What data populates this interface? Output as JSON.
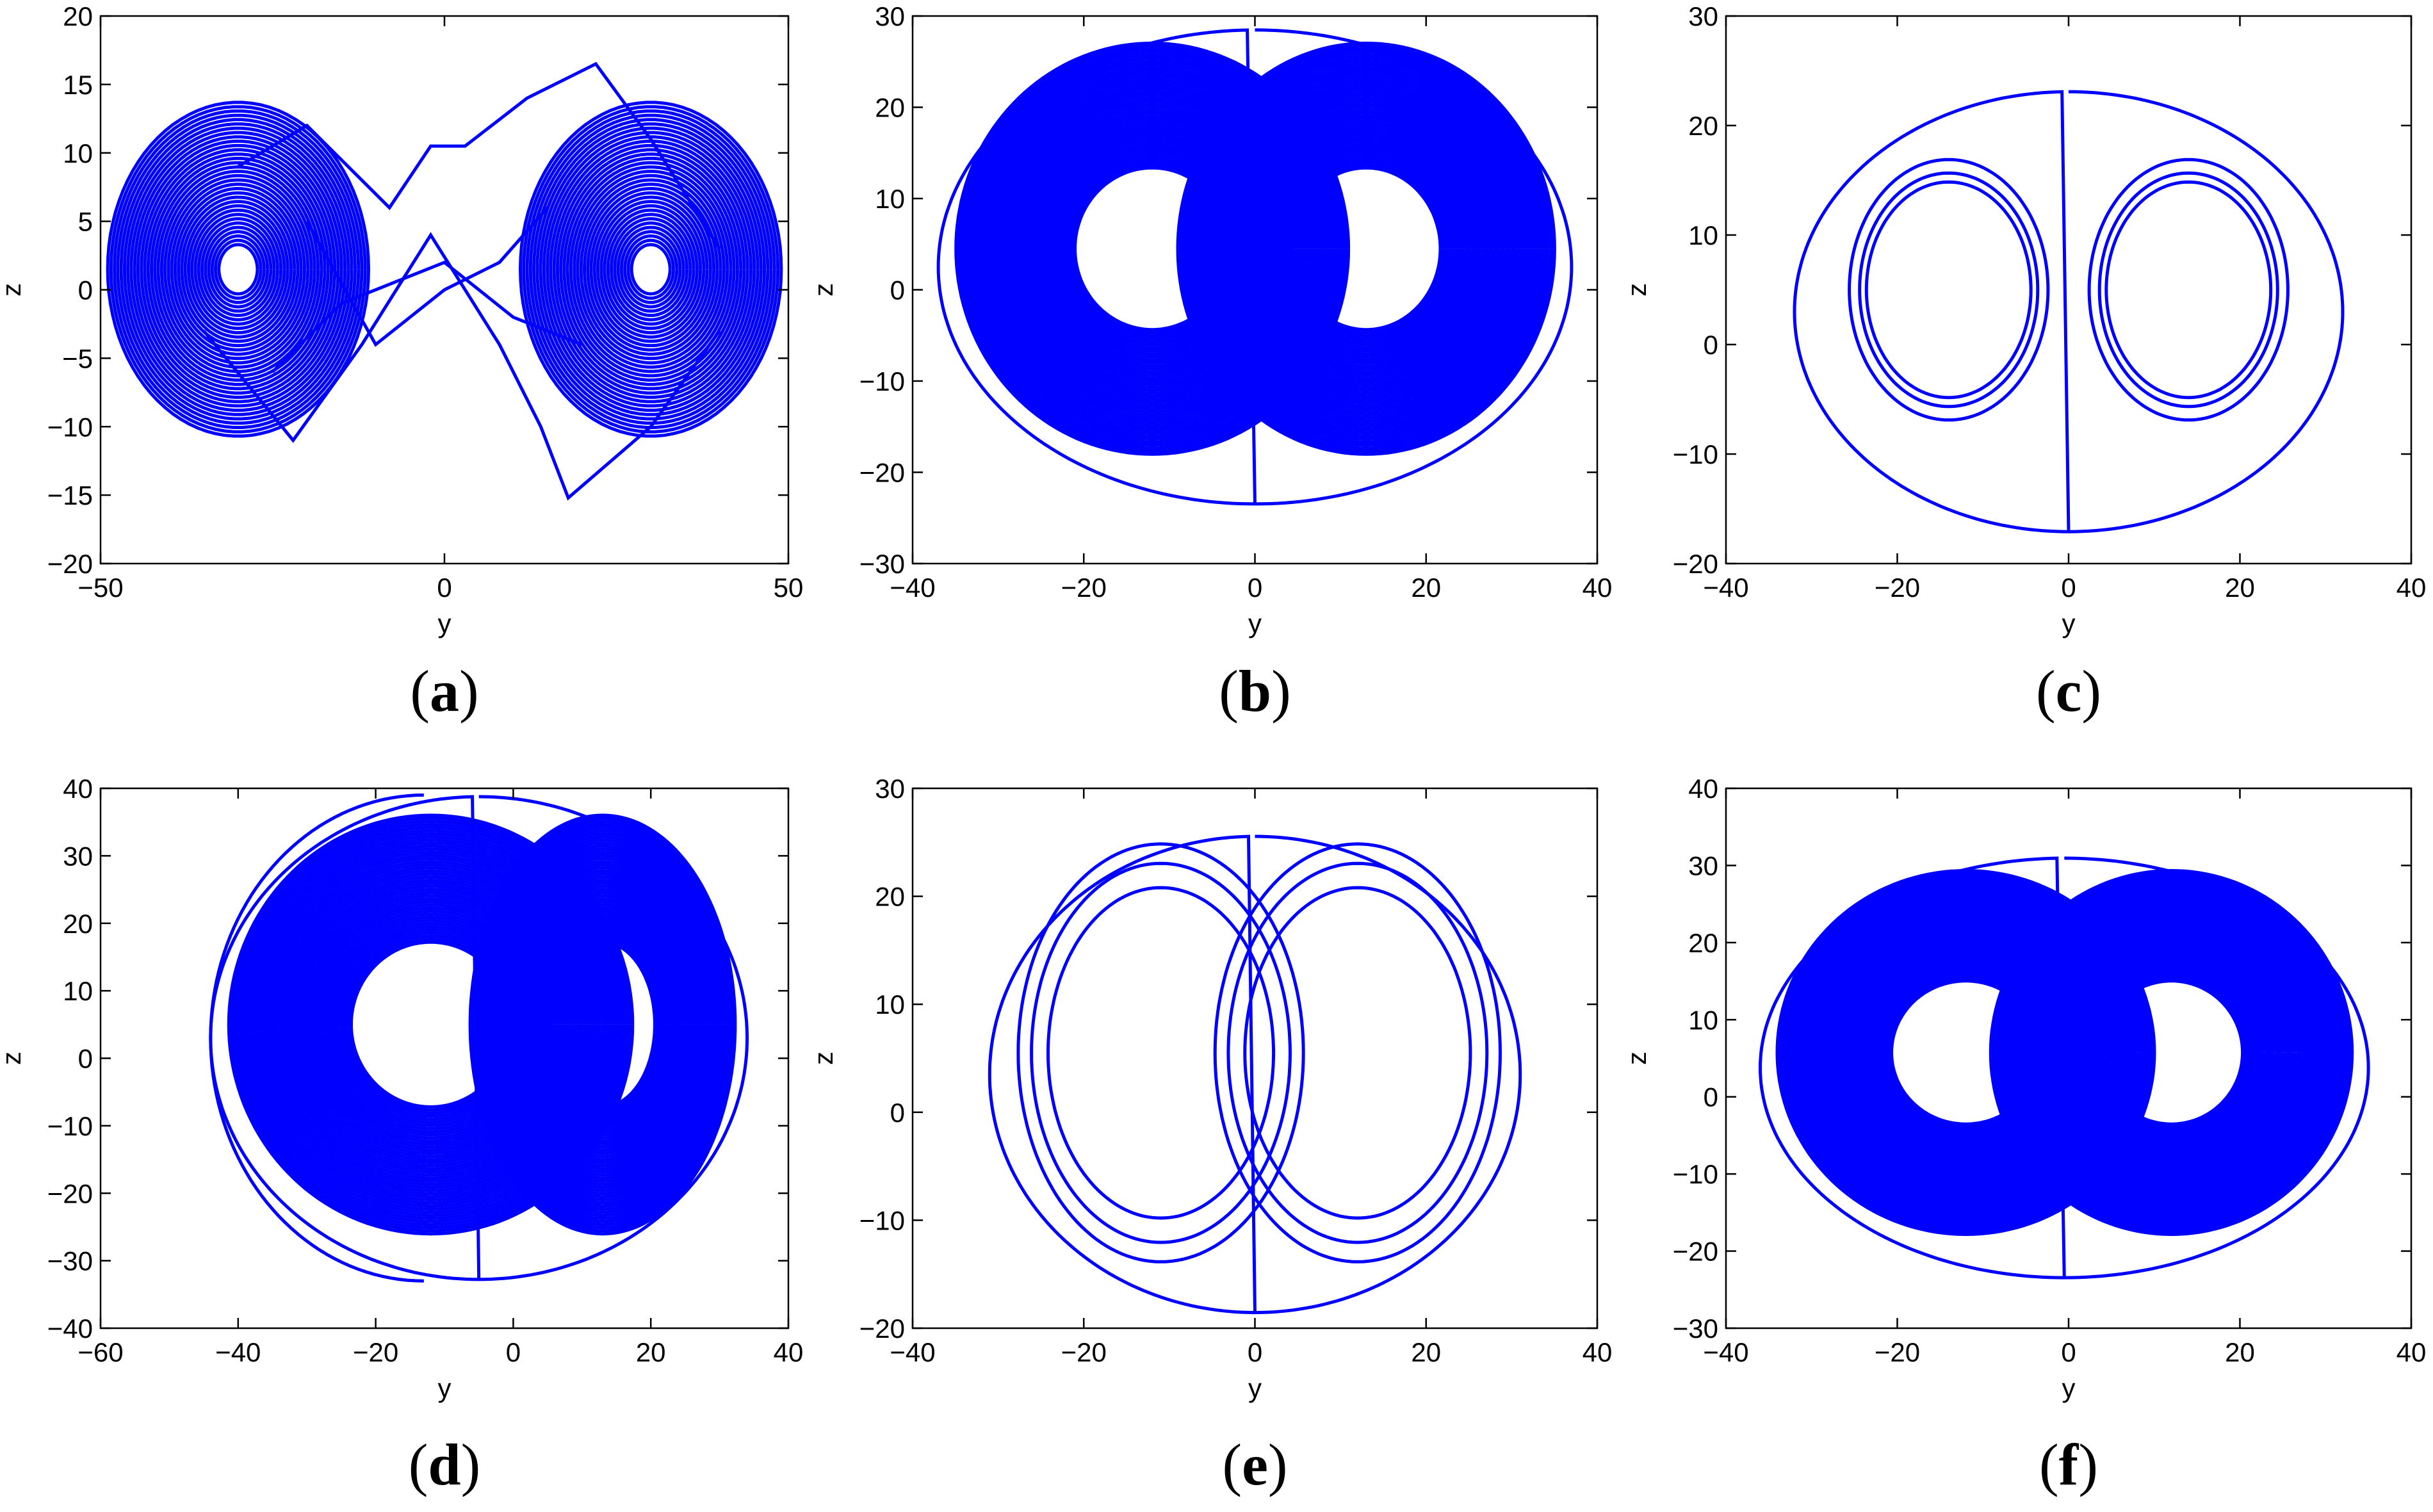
{
  "chart_data": [
    {
      "id": "a",
      "panel_label": "a",
      "type": "line",
      "xlabel": "y",
      "ylabel": "z",
      "xlim": [
        -50,
        50
      ],
      "ylim": [
        -20,
        20
      ],
      "xticks": [
        -50,
        0,
        50
      ],
      "yticks": [
        -20,
        -15,
        -10,
        -5,
        0,
        5,
        10,
        15,
        20
      ],
      "xtick_labels": [
        "−50",
        "0",
        "50"
      ],
      "ytick_labels": [
        "−20",
        "−15",
        "−10",
        "−5",
        "0",
        "5",
        "10",
        "15",
        "20"
      ],
      "line_color": "#0000ff",
      "series": [
        {
          "pattern": "dense-two-scroll",
          "attractor": "chaotic double-scroll",
          "lobe_centers_x": [
            -30,
            30
          ],
          "x_extent": [
            -45,
            45
          ],
          "y_extent": [
            -15,
            17
          ]
        }
      ]
    },
    {
      "id": "b",
      "panel_label": "b",
      "type": "line",
      "xlabel": "y",
      "ylabel": "z",
      "xlim": [
        -40,
        40
      ],
      "ylim": [
        -30,
        30
      ],
      "xticks": [
        -40,
        -20,
        0,
        20,
        40
      ],
      "yticks": [
        -30,
        -20,
        -10,
        0,
        10,
        20,
        30
      ],
      "xtick_labels": [
        "−40",
        "−20",
        "0",
        "20",
        "40"
      ],
      "ytick_labels": [
        "−30",
        "−20",
        "−10",
        "0",
        "10",
        "20",
        "30"
      ],
      "line_color": "#0000ff",
      "series": [
        {
          "pattern": "dense-butterfly",
          "attractor": "chaotic butterfly",
          "lobe_centers_x": [
            -12,
            13
          ],
          "x_extent": [
            -37,
            37
          ],
          "y_extent": [
            -24,
            29
          ]
        }
      ]
    },
    {
      "id": "c",
      "panel_label": "c",
      "type": "line",
      "xlabel": "y",
      "ylabel": "z",
      "xlim": [
        -40,
        40
      ],
      "ylim": [
        -20,
        30
      ],
      "xticks": [
        -40,
        -20,
        0,
        20,
        40
      ],
      "yticks": [
        -20,
        -10,
        0,
        10,
        20,
        30
      ],
      "xtick_labels": [
        "−40",
        "−20",
        "0",
        "20",
        "40"
      ],
      "ytick_labels": [
        "−20",
        "−10",
        "0",
        "10",
        "20",
        "30"
      ],
      "line_color": "#0000ff",
      "series": [
        {
          "pattern": "periodic-butterfly",
          "attractor": "periodic orbit",
          "lobe_centers_x": [
            -14,
            14
          ],
          "x_extent": [
            -32,
            32
          ],
          "y_extent": [
            -17.5,
            23.5
          ]
        }
      ]
    },
    {
      "id": "d",
      "panel_label": "d",
      "type": "line",
      "xlabel": "y",
      "ylabel": "z",
      "xlim": [
        -60,
        40
      ],
      "ylim": [
        -40,
        40
      ],
      "xticks": [
        -60,
        -40,
        -20,
        0,
        20,
        40
      ],
      "yticks": [
        -40,
        -30,
        -20,
        -10,
        0,
        10,
        20,
        30,
        40
      ],
      "xtick_labels": [
        "−60",
        "−40",
        "−20",
        "0",
        "20",
        "40"
      ],
      "ytick_labels": [
        "−40",
        "−30",
        "−20",
        "−10",
        "0",
        "10",
        "20",
        "30",
        "40"
      ],
      "line_color": "#0000ff",
      "series": [
        {
          "pattern": "dense-butterfly-transient",
          "attractor": "chaotic butterfly with transient loop",
          "lobe_centers_x": [
            -12,
            13
          ],
          "x_extent": [
            -44,
            34
          ],
          "y_extent": [
            -33.5,
            39.5
          ]
        }
      ]
    },
    {
      "id": "e",
      "panel_label": "e",
      "type": "line",
      "xlabel": "y",
      "ylabel": "z",
      "xlim": [
        -40,
        40
      ],
      "ylim": [
        -20,
        30
      ],
      "xticks": [
        -40,
        -20,
        0,
        20,
        40
      ],
      "yticks": [
        -20,
        -10,
        0,
        10,
        20,
        30
      ],
      "xtick_labels": [
        "−40",
        "−20",
        "0",
        "20",
        "40"
      ],
      "ytick_labels": [
        "−20",
        "−10",
        "0",
        "10",
        "20",
        "30"
      ],
      "line_color": "#0000ff",
      "series": [
        {
          "pattern": "periodic-butterfly-tall",
          "attractor": "periodic orbit",
          "lobe_centers_x": [
            -11,
            12
          ],
          "x_extent": [
            -31,
            31
          ],
          "y_extent": [
            -19,
            26
          ]
        }
      ]
    },
    {
      "id": "f",
      "panel_label": "f",
      "type": "line",
      "xlabel": "y",
      "ylabel": "z",
      "xlim": [
        -40,
        40
      ],
      "ylim": [
        -30,
        40
      ],
      "xticks": [
        -40,
        -20,
        0,
        20,
        40
      ],
      "yticks": [
        -30,
        -20,
        -10,
        0,
        10,
        20,
        30,
        40
      ],
      "xtick_labels": [
        "−40",
        "−20",
        "0",
        "20",
        "40"
      ],
      "ytick_labels": [
        "−30",
        "−20",
        "−10",
        "0",
        "10",
        "20",
        "30",
        "40"
      ],
      "line_color": "#0000ff",
      "series": [
        {
          "pattern": "dense-butterfly",
          "attractor": "chaotic butterfly",
          "lobe_centers_x": [
            -12,
            12
          ],
          "x_extent": [
            -36,
            35
          ],
          "y_extent": [
            -24,
            31.5
          ]
        }
      ]
    }
  ]
}
